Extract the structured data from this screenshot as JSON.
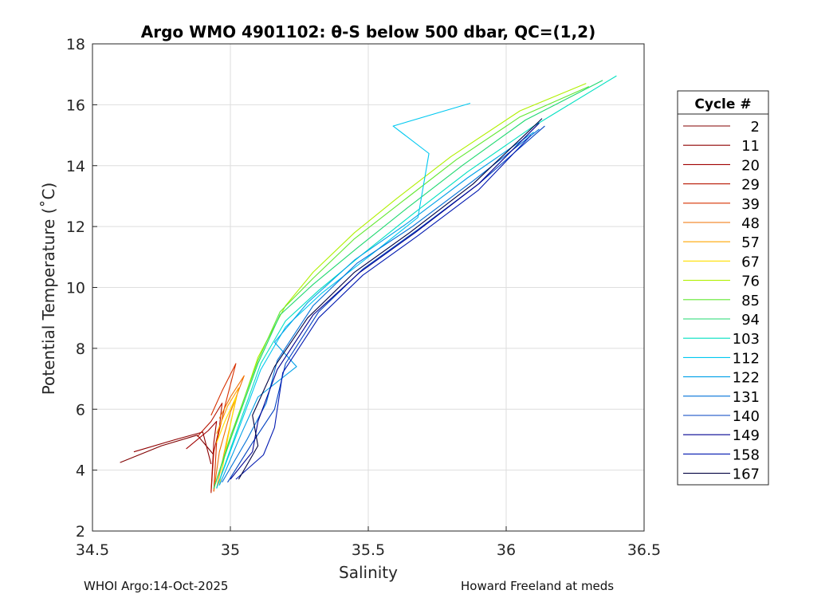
{
  "chart_data": {
    "type": "line",
    "title": "Argo WMO 4901102: θ-S below 500 dbar,  QC=(1,2)",
    "xlabel": "Salinity",
    "ylabel": "Potential Temperature (˚C)",
    "xlim": [
      34.5,
      36.5
    ],
    "ylim": [
      2,
      18
    ],
    "xticks": [
      34.5,
      35,
      35.5,
      36,
      36.5
    ],
    "xtick_labels": [
      "34.5",
      "35",
      "35.5",
      "36",
      "36.5"
    ],
    "yticks": [
      2,
      4,
      6,
      8,
      10,
      12,
      14,
      16,
      18
    ],
    "ytick_labels": [
      "2",
      "4",
      "6",
      "8",
      "10",
      "12",
      "14",
      "16",
      "18"
    ],
    "grid": true,
    "legend_title": "Cycle #",
    "legend_position": "outside-right",
    "series": [
      {
        "name": "2",
        "color": "#800000",
        "x": [
          34.6,
          34.75,
          34.88,
          34.94
        ],
        "y": [
          4.25,
          4.8,
          5.15,
          4.5
        ]
      },
      {
        "name": "11",
        "color": "#8f0000",
        "x": [
          34.65,
          34.8,
          34.9,
          34.93
        ],
        "y": [
          4.6,
          5.0,
          5.25,
          4.2
        ]
      },
      {
        "name": "20",
        "color": "#a00000",
        "x": [
          34.84,
          34.92,
          34.95,
          34.94,
          34.93
        ],
        "y": [
          4.7,
          5.3,
          5.6,
          4.9,
          3.3
        ]
      },
      {
        "name": "29",
        "color": "#b81500",
        "x": [
          34.88,
          34.93,
          34.97,
          34.96,
          34.94,
          34.93
        ],
        "y": [
          5.1,
          5.6,
          6.2,
          5.4,
          4.6,
          3.25
        ]
      },
      {
        "name": "39",
        "color": "#d73000",
        "x": [
          34.93,
          34.97,
          35.02,
          34.98,
          34.95,
          34.94
        ],
        "y": [
          5.8,
          6.6,
          7.5,
          6.1,
          4.9,
          3.3
        ]
      },
      {
        "name": "48",
        "color": "#f07000",
        "x": [
          34.96,
          35.0,
          35.05,
          35.0,
          34.96,
          34.94
        ],
        "y": [
          5.7,
          6.4,
          7.1,
          5.9,
          4.6,
          3.3
        ]
      },
      {
        "name": "57",
        "color": "#ffa500",
        "x": [
          34.95,
          34.99,
          35.03,
          34.99,
          34.95
        ],
        "y": [
          5.2,
          6.1,
          6.7,
          5.1,
          3.4
        ]
      },
      {
        "name": "67",
        "color": "#ffe000",
        "x": [
          34.95,
          34.98,
          35.02,
          34.99,
          34.96
        ],
        "y": [
          4.9,
          5.6,
          6.4,
          5.0,
          3.5
        ]
      },
      {
        "name": "76",
        "color": "#b0f000",
        "x": [
          34.94,
          35.0,
          35.1,
          35.2,
          35.3,
          35.45,
          35.6,
          35.8,
          36.05,
          36.29
        ],
        "y": [
          3.4,
          5.0,
          7.7,
          9.4,
          10.5,
          11.8,
          12.9,
          14.3,
          15.8,
          16.7
        ]
      },
      {
        "name": "85",
        "color": "#60e830",
        "x": [
          34.94,
          35.0,
          35.1,
          35.18,
          35.3,
          35.45,
          35.62,
          35.82,
          36.05,
          36.3
        ],
        "y": [
          3.4,
          5.1,
          7.6,
          9.2,
          10.3,
          11.6,
          12.8,
          14.2,
          15.6,
          16.6
        ]
      },
      {
        "name": "94",
        "color": "#20d870",
        "x": [
          34.94,
          35.0,
          35.1,
          35.18,
          35.3,
          35.46,
          35.64,
          35.84,
          36.07,
          36.35
        ],
        "y": [
          3.4,
          5.0,
          7.5,
          9.1,
          10.1,
          11.3,
          12.6,
          14.0,
          15.5,
          16.8
        ]
      },
      {
        "name": "103",
        "color": "#00e0c0",
        "x": [
          34.95,
          35.02,
          35.11,
          35.2,
          35.32,
          35.48,
          35.66,
          35.86,
          36.1,
          36.4
        ],
        "y": [
          3.4,
          5.2,
          7.5,
          8.9,
          9.9,
          11.1,
          12.4,
          13.8,
          15.3,
          16.95
        ]
      },
      {
        "name": "112",
        "color": "#00c8f0",
        "x": [
          34.95,
          35.02,
          35.11,
          35.2,
          35.33,
          35.5,
          35.68,
          35.72,
          35.59,
          35.87
        ],
        "y": [
          3.4,
          5.1,
          7.3,
          8.7,
          9.8,
          11.0,
          12.3,
          14.4,
          15.3,
          16.05
        ]
      },
      {
        "name": "122",
        "color": "#00a0e8",
        "x": [
          34.96,
          35.04,
          35.1,
          35.24,
          35.16,
          35.28,
          35.45,
          35.64,
          35.86,
          36.1
        ],
        "y": [
          3.5,
          5.2,
          6.4,
          7.4,
          8.2,
          9.5,
          10.9,
          12.1,
          13.6,
          15.1
        ]
      },
      {
        "name": "131",
        "color": "#0070d8",
        "x": [
          34.97,
          35.06,
          35.13,
          35.17,
          35.3,
          35.46,
          35.66,
          35.88,
          36.12
        ],
        "y": [
          3.6,
          5.0,
          6.2,
          7.6,
          9.4,
          10.8,
          12.0,
          13.5,
          15.2
        ]
      },
      {
        "name": "140",
        "color": "#0040c0",
        "x": [
          34.99,
          35.08,
          35.16,
          35.2,
          35.32,
          35.48,
          35.68,
          35.9,
          36.14
        ],
        "y": [
          3.6,
          4.9,
          6.0,
          7.5,
          9.2,
          10.6,
          11.9,
          13.4,
          15.3
        ]
      },
      {
        "name": "149",
        "color": "#000090",
        "x": [
          35.0,
          35.08,
          35.1,
          35.17,
          35.3,
          35.47,
          35.67,
          35.9,
          36.12
        ],
        "y": [
          3.7,
          4.6,
          5.6,
          7.3,
          9.1,
          10.5,
          11.8,
          13.4,
          15.4
        ]
      },
      {
        "name": "158",
        "color": "#0018b0",
        "x": [
          35.02,
          35.12,
          35.16,
          35.19,
          35.32,
          35.48,
          35.68,
          35.9,
          36.09
        ],
        "y": [
          3.7,
          4.5,
          5.4,
          7.2,
          9.0,
          10.4,
          11.7,
          13.2,
          15.0
        ]
      },
      {
        "name": "167",
        "color": "#000040",
        "x": [
          35.03,
          35.1,
          35.08,
          35.16,
          35.28,
          35.45,
          35.65,
          35.88,
          36.13
        ],
        "y": [
          3.7,
          4.8,
          5.8,
          7.4,
          9.0,
          10.5,
          11.8,
          13.4,
          15.55
        ]
      }
    ]
  },
  "footer": {
    "left": "WHOI Argo:14-Oct-2025",
    "right": "Howard Freeland at meds"
  }
}
